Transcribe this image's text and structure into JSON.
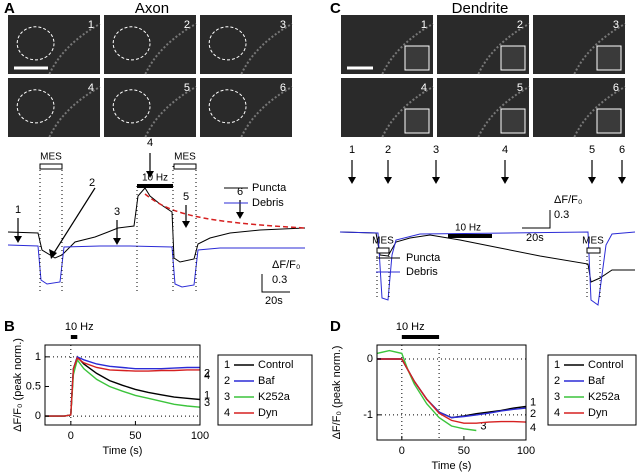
{
  "panel_a": {
    "letter": "A",
    "title": "Axon",
    "images": [
      "1",
      "2",
      "3",
      "4",
      "5",
      "6"
    ],
    "arrows": [
      "1",
      "2",
      "3",
      "4",
      "5",
      "6"
    ],
    "mes": [
      "MES",
      "MES"
    ],
    "stim": "10 Hz",
    "legend": [
      "Puncta",
      "Debris"
    ],
    "scale": [
      "ΔF/F₀",
      "0.3",
      "20s"
    ]
  },
  "panel_c": {
    "letter": "C",
    "title": "Dendrite",
    "images": [
      "1",
      "2",
      "3",
      "4",
      "5",
      "6"
    ],
    "arrows": [
      "1",
      "2",
      "3",
      "4",
      "5",
      "6"
    ],
    "mes": [
      "MES",
      "MES"
    ],
    "stim": "10 Hz",
    "legend": [
      "Puncta",
      "Debris"
    ],
    "scale": [
      "ΔF/F₀",
      "0.3",
      "20s"
    ]
  },
  "chart_data": [
    {
      "type": "line",
      "panel": "B",
      "xlabel": "Time (s)",
      "ylabel": "ΔF/F₀ (peak norm.)",
      "xlim": [
        -20,
        100
      ],
      "ylim": [
        -0.15,
        1.2
      ],
      "xticks": [
        0,
        50,
        100
      ],
      "yticks": [
        0,
        0.5,
        1
      ],
      "stim": {
        "label": "10 Hz",
        "start": 0,
        "end": 5
      },
      "ref_lines": {
        "x": [
          0
        ],
        "y": [
          0,
          1
        ]
      },
      "x": [
        -20,
        -10,
        -5,
        0,
        2,
        5,
        10,
        20,
        30,
        40,
        50,
        60,
        70,
        80,
        90,
        100
      ],
      "series": [
        {
          "label": "1",
          "name": "Control",
          "color": "#000000",
          "values": [
            0,
            0,
            0,
            0.02,
            0.8,
            1.0,
            0.88,
            0.72,
            0.6,
            0.52,
            0.45,
            0.4,
            0.36,
            0.32,
            0.3,
            0.28
          ]
        },
        {
          "label": "2",
          "name": "Baf",
          "color": "#2b2bd6",
          "values": [
            0,
            0,
            0,
            0.02,
            0.8,
            1.0,
            0.95,
            0.88,
            0.84,
            0.82,
            0.8,
            0.8,
            0.8,
            0.81,
            0.82,
            0.82
          ]
        },
        {
          "label": "3",
          "name": "K252a",
          "color": "#3cc43c",
          "values": [
            0,
            0,
            0,
            0.02,
            0.7,
            0.95,
            0.8,
            0.62,
            0.5,
            0.42,
            0.35,
            0.3,
            0.25,
            0.2,
            0.17,
            0.15
          ]
        },
        {
          "label": "4",
          "name": "Dyn",
          "color": "#d62020",
          "values": [
            0,
            0,
            0,
            0.02,
            0.8,
            0.98,
            0.9,
            0.82,
            0.78,
            0.77,
            0.76,
            0.76,
            0.77,
            0.77,
            0.78,
            0.78
          ]
        }
      ]
    },
    {
      "type": "line",
      "panel": "D",
      "xlabel": "Time (s)",
      "ylabel": "ΔF/F₀ (peak norm.)",
      "xlim": [
        -20,
        100
      ],
      "ylim": [
        -1.45,
        0.25
      ],
      "xticks": [
        0,
        50,
        100
      ],
      "yticks": [
        -1,
        0
      ],
      "stim": {
        "label": "10 Hz",
        "start": 0,
        "end": 30
      },
      "ref_lines": {
        "x": [
          0,
          30
        ],
        "y": [
          0,
          -1
        ]
      },
      "x": [
        -20,
        -10,
        0,
        5,
        10,
        20,
        30,
        40,
        50,
        60,
        70,
        80,
        90,
        100
      ],
      "series": [
        {
          "label": "1",
          "name": "Control",
          "color": "#000000",
          "values": [
            0,
            0,
            0,
            -0.2,
            -0.4,
            -0.72,
            -0.95,
            -1.05,
            -1.02,
            -0.98,
            -0.95,
            -0.92,
            -0.88,
            -0.85
          ]
        },
        {
          "label": "2",
          "name": "Baf",
          "color": "#2b2bd6",
          "values": [
            0,
            0,
            0,
            -0.2,
            -0.4,
            -0.72,
            -0.95,
            -1.05,
            -1.03,
            -1.0,
            -0.97,
            -0.93,
            -0.9,
            -0.88
          ]
        },
        {
          "label": "3",
          "name": "K252a",
          "color": "#3cc43c",
          "values": [
            0.1,
            0.15,
            0.1,
            -0.2,
            -0.45,
            -0.8,
            -1.05,
            -1.2,
            -1.25,
            -1.28,
            null,
            null,
            null,
            null
          ]
        },
        {
          "label": "4",
          "name": "Dyn",
          "color": "#d62020",
          "values": [
            0,
            0,
            0,
            -0.2,
            -0.4,
            -0.72,
            -0.97,
            -1.1,
            -1.15,
            -1.15,
            -1.13,
            -1.12,
            -1.12,
            -1.13
          ]
        }
      ]
    }
  ]
}
